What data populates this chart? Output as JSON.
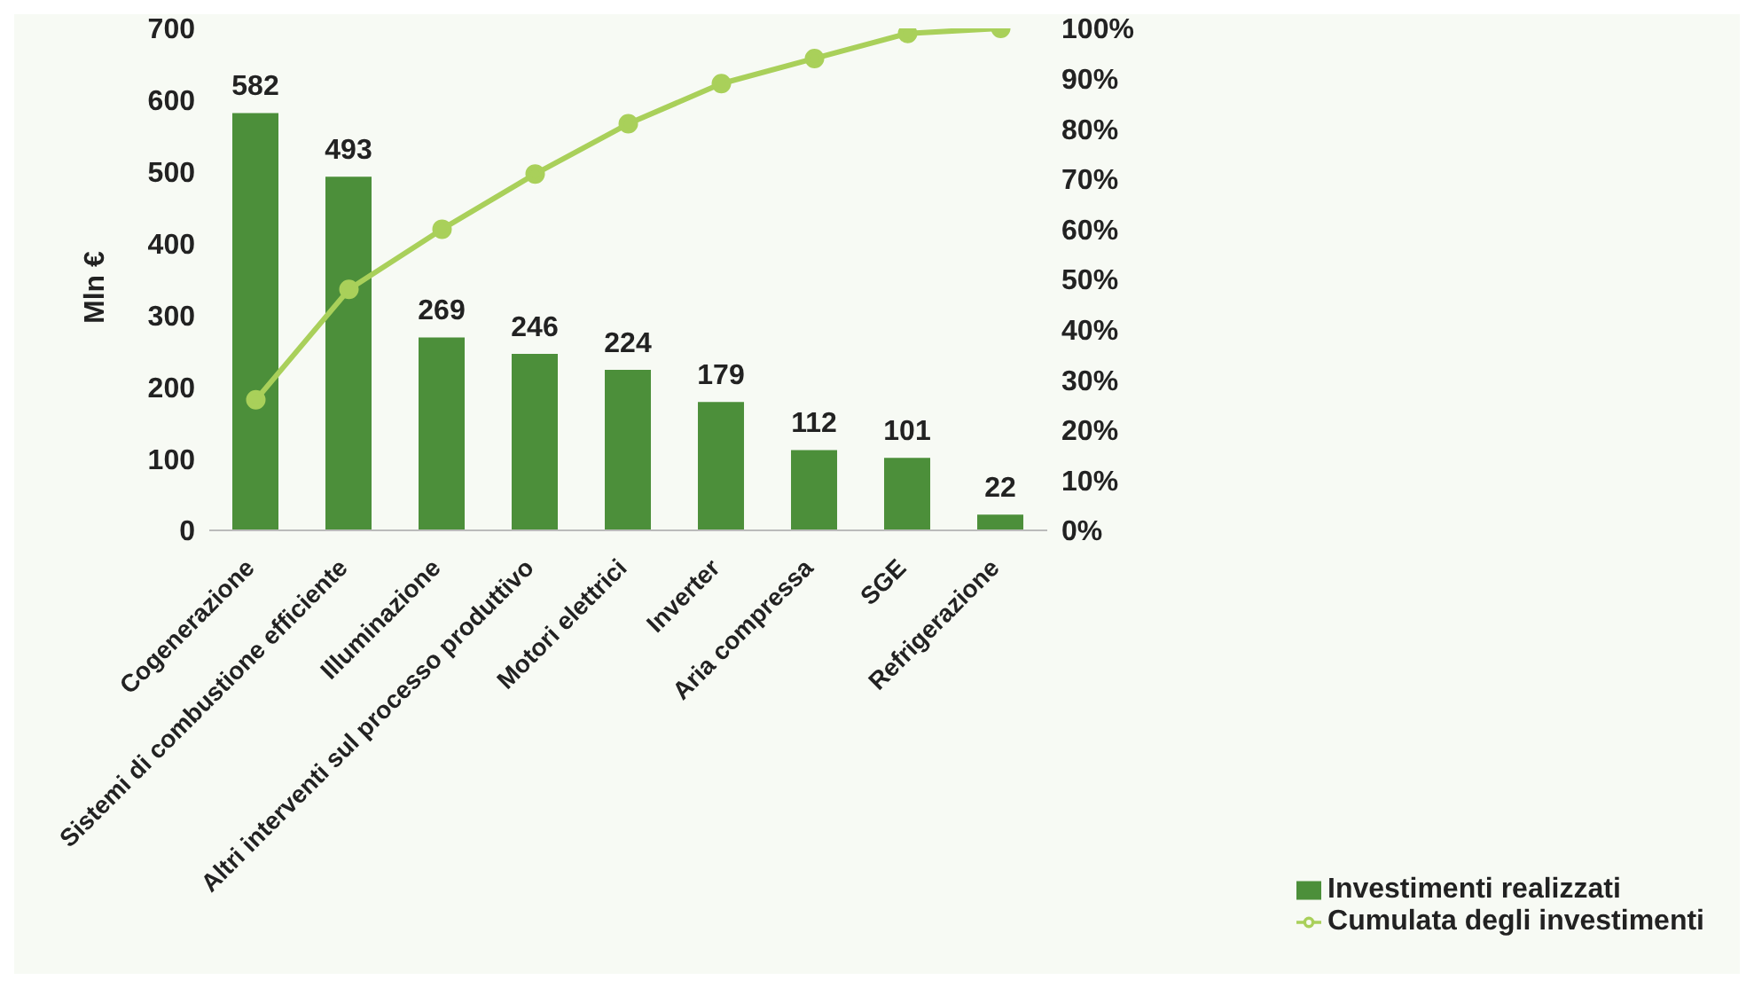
{
  "chart_data": {
    "type": "bar",
    "ylabel": "Mln €",
    "categories": [
      "Cogenerazione",
      "Sistemi di combustione efficiente",
      "Illuminazione",
      "Altri interventi sul processo produttivo",
      "Motori elettrici",
      "Inverter",
      "Aria compressa",
      "SGE",
      "Refrigerazione"
    ],
    "series": [
      {
        "name": "Investimenti realizzati",
        "color": "#4c8f3a",
        "values": [
          582,
          493,
          269,
          246,
          224,
          179,
          112,
          101,
          22
        ],
        "value_labels": [
          "582",
          "493",
          "269",
          "246",
          "224",
          "179",
          "112",
          "101",
          "22"
        ]
      },
      {
        "name": "Cumulata degli investimenti",
        "type": "line",
        "axis": "y2",
        "color": "#a9d05a",
        "values": [
          26,
          48,
          60,
          71,
          81,
          89,
          94,
          99,
          100
        ]
      }
    ],
    "ylim": [
      0,
      700
    ],
    "yticks": [
      0,
      100,
      200,
      300,
      400,
      500,
      600,
      700
    ],
    "y2lim": [
      0,
      100
    ],
    "y2ticks": [
      {
        "value": 0,
        "label": "0%"
      },
      {
        "value": 10,
        "label": "10%"
      },
      {
        "value": 20,
        "label": "20%"
      },
      {
        "value": 30,
        "label": "30%"
      },
      {
        "value": 40,
        "label": "40%"
      },
      {
        "value": 50,
        "label": "50%"
      },
      {
        "value": 60,
        "label": "60%"
      },
      {
        "value": 70,
        "label": "70%"
      },
      {
        "value": 80,
        "label": "80%"
      },
      {
        "value": 90,
        "label": "90%"
      },
      {
        "value": 100,
        "label": "100%"
      }
    ],
    "grid": false,
    "legend": "bottom right",
    "marker": "circle",
    "line_style": "solid"
  }
}
